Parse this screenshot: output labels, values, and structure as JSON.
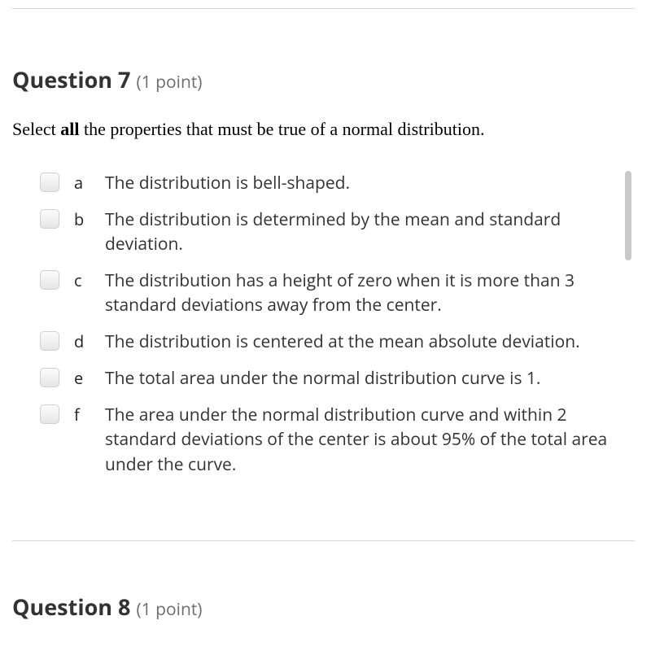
{
  "question7": {
    "label": "Question 7",
    "points": "(1 point)",
    "prompt_pre": "Select ",
    "prompt_bold": "all",
    "prompt_post": " the properties that must be true of a normal distribution.",
    "options": [
      {
        "letter": "a",
        "text": "The distribution is bell-shaped."
      },
      {
        "letter": "b",
        "text": "The distribution is determined by the mean and standard deviation."
      },
      {
        "letter": "c",
        "text": "The distribution has a height of zero when it is more than 3 standard deviations away from the center."
      },
      {
        "letter": "d",
        "text": "The distribution is centered at the mean absolute deviation."
      },
      {
        "letter": "e",
        "text": "The total area under the normal distribution curve is 1."
      },
      {
        "letter": "f",
        "text": "The area under the normal distribution curve and within 2 standard deviations of the center is about 95% of the total area under the curve."
      }
    ]
  },
  "question8": {
    "label": "Question 8",
    "points": "(1 point)"
  }
}
